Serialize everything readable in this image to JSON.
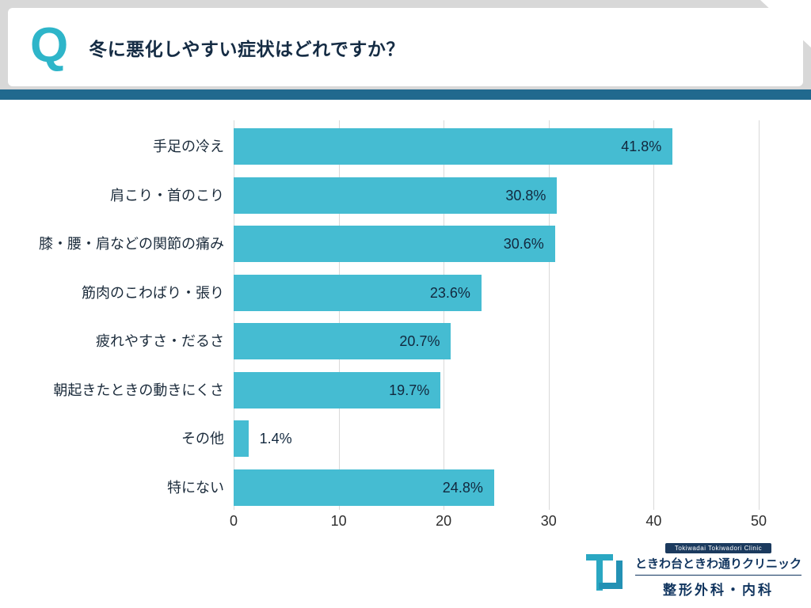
{
  "header": {
    "q": "Q",
    "question": "冬に悪化しやすい症状はどれですか？"
  },
  "chart_data": {
    "type": "bar",
    "orientation": "horizontal",
    "title": "冬に悪化しやすい症状はどれですか？",
    "categories": [
      "手足の冷え",
      "肩こり・首のこり",
      "膝・腰・肩などの関節の痛み",
      "筋肉のこわばり・張り",
      "疲れやすさ・だるさ",
      "朝起きたときの動きにくさ",
      "その他",
      "特にない"
    ],
    "values": [
      41.8,
      30.8,
      30.6,
      23.6,
      20.7,
      19.7,
      1.4,
      24.8
    ],
    "value_labels": [
      "41.8%",
      "30.8%",
      "30.6%",
      "23.6%",
      "20.7%",
      "19.7%",
      "1.4%",
      "24.8%"
    ],
    "xlim": [
      0,
      50
    ],
    "x_ticks": [
      0,
      10,
      20,
      30,
      40,
      50
    ],
    "bar_color": "#45BCD2",
    "grid": true,
    "legend": "none"
  },
  "footer": {
    "logo_caption_en": "Tokiwadai Tokiwadori Clinic",
    "clinic_name": "ときわ台ときわ通りクリニック",
    "departments": "整形外科・内科"
  },
  "colors": {
    "accent_teal": "#2EB5C9",
    "band_gray": "#D8D8D8",
    "stripe_blue": "#21698E",
    "bar_cyan": "#45BCD2",
    "text_navy": "#152C44"
  }
}
